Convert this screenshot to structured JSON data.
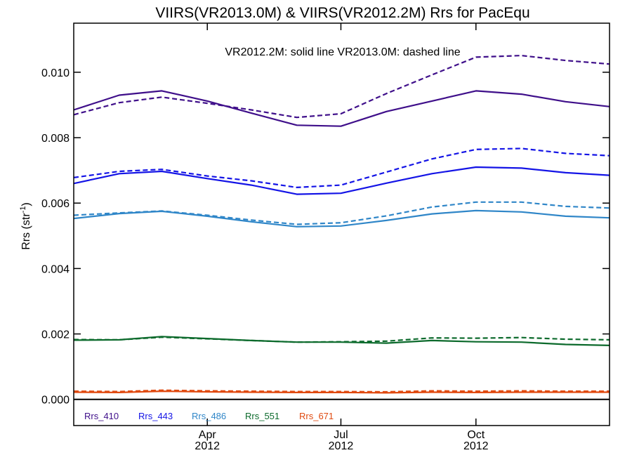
{
  "chart_data": {
    "type": "line",
    "title": "VIIRS(VR2013.0M) & VIIRS(VR2012.2M)  Rrs for PacEqu",
    "annotation": "VR2012.2M: solid line   VR2013.0M: dashed line",
    "ylabel": "Rrs (str",
    "ylabel_sup": "-1",
    "ylabel_end": ")",
    "ylim": [
      -0.0008,
      0.0115
    ],
    "xlim": [
      "2012-01-01",
      "2012-12-31"
    ],
    "y_ticks": [
      "0.000",
      "0.002",
      "0.004",
      "0.006",
      "0.008",
      "0.010"
    ],
    "y_tick_values": [
      0.0,
      0.002,
      0.004,
      0.006,
      0.008,
      0.01
    ],
    "x_ticks": [
      {
        "date": "2012-04-01",
        "label": "Apr",
        "sublabel": "2012"
      },
      {
        "date": "2012-07-01",
        "label": "Jul",
        "sublabel": "2012"
      },
      {
        "date": "2012-10-01",
        "label": "Oct",
        "sublabel": "2012"
      }
    ],
    "x": [
      "2012-01-01",
      "2012-02-01",
      "2012-03-01",
      "2012-04-01",
      "2012-05-01",
      "2012-06-01",
      "2012-07-01",
      "2012-08-01",
      "2012-09-01",
      "2012-10-01",
      "2012-11-01",
      "2012-12-01",
      "2012-12-31"
    ],
    "series": [
      {
        "name": "Rrs_410",
        "color": "#3f0f8a",
        "solid": [
          0.00885,
          0.0093,
          0.00943,
          0.00912,
          0.00875,
          0.00838,
          0.00835,
          0.0088,
          0.00912,
          0.00943,
          0.00933,
          0.0091,
          0.00895
        ],
        "dashed": [
          0.0087,
          0.00907,
          0.00924,
          0.00905,
          0.00885,
          0.00862,
          0.00873,
          0.00935,
          0.00992,
          0.01046,
          0.01051,
          0.01036,
          0.01025
        ]
      },
      {
        "name": "Rrs_443",
        "color": "#1414e6",
        "solid": [
          0.0066,
          0.0069,
          0.00697,
          0.00675,
          0.00655,
          0.00627,
          0.0063,
          0.00661,
          0.0069,
          0.0071,
          0.00707,
          0.00693,
          0.00685
        ],
        "dashed": [
          0.00678,
          0.00697,
          0.00703,
          0.00683,
          0.00668,
          0.00648,
          0.00655,
          0.00695,
          0.00735,
          0.00764,
          0.00767,
          0.00752,
          0.00745
        ]
      },
      {
        "name": "Rrs_486",
        "color": "#2f86c8",
        "solid": [
          0.00553,
          0.00568,
          0.00575,
          0.0056,
          0.00543,
          0.00528,
          0.0053,
          0.00547,
          0.00567,
          0.00577,
          0.00573,
          0.0056,
          0.00555
        ],
        "dashed": [
          0.00563,
          0.0057,
          0.00576,
          0.00563,
          0.00548,
          0.00535,
          0.0054,
          0.00561,
          0.00588,
          0.00603,
          0.00603,
          0.0059,
          0.00585
        ]
      },
      {
        "name": "Rrs_551",
        "color": "#0c6a2c",
        "solid": [
          0.00181,
          0.00182,
          0.00192,
          0.00186,
          0.0018,
          0.00175,
          0.00175,
          0.00172,
          0.0018,
          0.00176,
          0.00175,
          0.00168,
          0.00165
        ],
        "dashed": [
          0.00183,
          0.00182,
          0.0019,
          0.00185,
          0.0018,
          0.00175,
          0.00176,
          0.00178,
          0.00188,
          0.00187,
          0.00189,
          0.00184,
          0.00182
        ]
      },
      {
        "name": "Rrs_671",
        "color": "#e04a10",
        "solid": [
          0.00022,
          0.00021,
          0.00025,
          0.00023,
          0.00022,
          0.00021,
          0.00021,
          0.0002,
          0.00022,
          0.00021,
          0.00022,
          0.00022,
          0.00022
        ],
        "dashed": [
          0.00025,
          0.00024,
          0.00028,
          0.00026,
          0.00025,
          0.00024,
          0.00024,
          0.00023,
          0.00026,
          0.00025,
          0.00026,
          0.00025,
          0.00025
        ]
      }
    ],
    "zero_line": 0.0,
    "grid": false,
    "legend_position": "bottom-left"
  }
}
